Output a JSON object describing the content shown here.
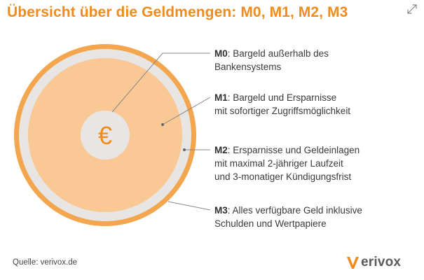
{
  "title": "Übersicht über die Geldmengen: M0, M1, M2, M3",
  "center_symbol": "€",
  "labels": [
    {
      "key": "M0",
      "sep": ": ",
      "lines": [
        "Bargeld außerhalb des",
        "Bankensystems"
      ]
    },
    {
      "key": "M1",
      "sep": ": ",
      "lines": [
        "Bargeld und Ersparnisse",
        "mit sofortiger Zugriffsmöglichkeit"
      ]
    },
    {
      "key": "M2",
      "sep": ": ",
      "lines": [
        "Ersparnisse und Geldeinlagen",
        "mit maximal 2-jähriger Laufzeit",
        "und 3-monatiger Kündigungsfrist"
      ]
    },
    {
      "key": "M3",
      "sep": ": ",
      "lines": [
        "Alles verfügbare Geld inklusive",
        "Schulden und Wertpapiere"
      ]
    }
  ],
  "source": "Quelle: verivox.de",
  "logo": {
    "text": "erivox"
  },
  "colors": {
    "accent": "#f08c1e",
    "ring_m3": "#f3a64e",
    "ring_m2": "#e8e6e4",
    "disc_m1": "#f9c894",
    "core_m0": "#e8e6e4",
    "leader": "#888888",
    "logo_v": "#f08c1e"
  },
  "icons": {
    "expand": "expand-arrows-icon"
  }
}
